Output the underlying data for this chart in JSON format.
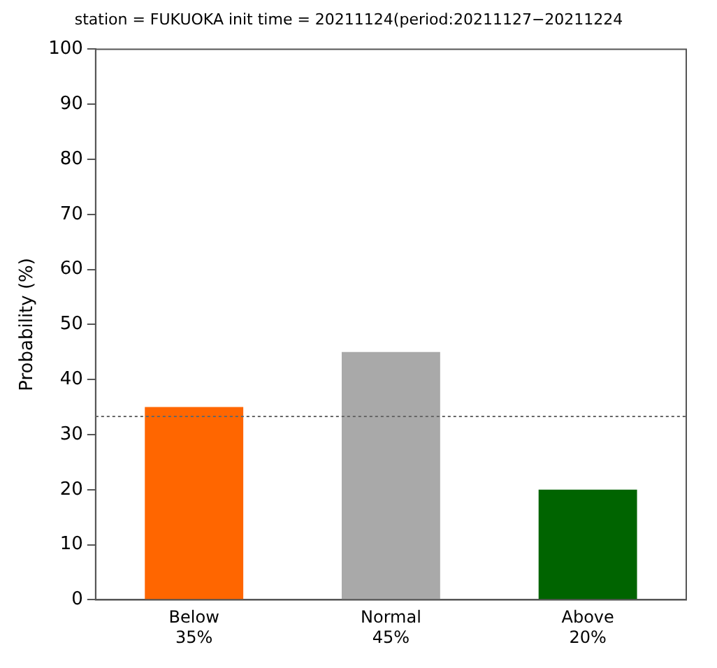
{
  "chart_data": {
    "type": "bar",
    "title": "station = FUKUOKA init time = 20211124(period:20211127−20211224",
    "ylabel": "Probability (%)",
    "categories": [
      "Below",
      "Normal",
      "Above"
    ],
    "values": [
      35,
      45,
      20
    ],
    "value_labels": [
      "35%",
      "45%",
      "20%"
    ],
    "colors": [
      "#ff6600",
      "#a9a9a9",
      "#006400"
    ],
    "ylim": [
      0,
      100
    ],
    "yticks": [
      0,
      10,
      20,
      30,
      40,
      50,
      60,
      70,
      80,
      90,
      100
    ],
    "ref_lines": [
      {
        "axis": "y",
        "value": 33.3,
        "color": "#666666",
        "line_style": "dotted"
      }
    ],
    "grid": false,
    "legend": false
  }
}
